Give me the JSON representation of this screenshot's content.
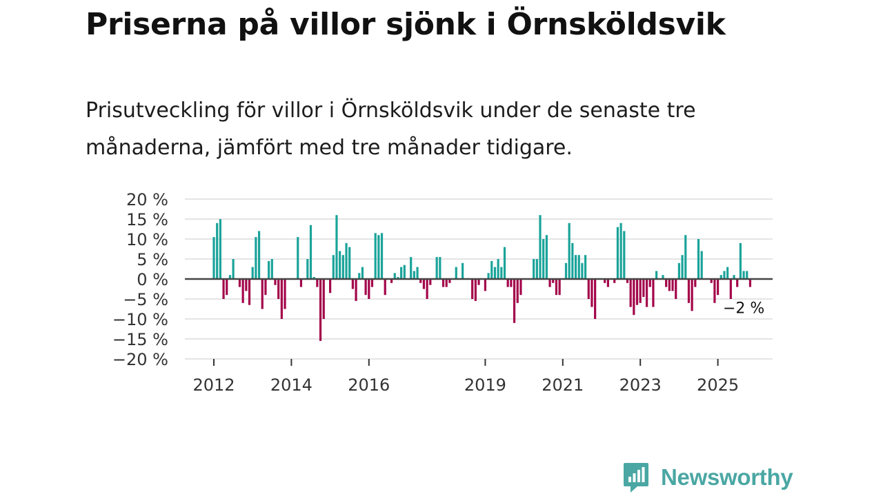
{
  "title": "Priserna på villor sjönk i Örnsköldsvik",
  "subtitle": "Prisutveckling för villor i Örnsköldsvik under de senaste tre månaderna, jämfört med tre månader tidigare.",
  "brand": {
    "name": "Newsworthy",
    "color": "#4aa7a3"
  },
  "colors": {
    "positive": "#1aa39a",
    "negative": "#a3054a",
    "grid": "#dcdcdc",
    "zero": "#444444"
  },
  "chart_data": {
    "type": "bar",
    "ylim": [
      -20,
      20
    ],
    "yticks": [
      {
        "value": 20,
        "label": "20 %"
      },
      {
        "value": 15,
        "label": "15 %"
      },
      {
        "value": 10,
        "label": "10 %"
      },
      {
        "value": 5,
        "label": "5 %"
      },
      {
        "value": 0,
        "label": "0 %"
      },
      {
        "value": -5,
        "label": "−5 %"
      },
      {
        "value": -10,
        "label": "−10 %"
      },
      {
        "value": -15,
        "label": "−15 %"
      },
      {
        "value": -20,
        "label": "−20 %"
      }
    ],
    "xticks": [
      {
        "year": 2012,
        "label": "2012"
      },
      {
        "year": 2014,
        "label": "2014"
      },
      {
        "year": 2016,
        "label": "2016"
      },
      {
        "year": 2019,
        "label": "2019"
      },
      {
        "year": 2021,
        "label": "2021"
      },
      {
        "year": 2023,
        "label": "2023"
      },
      {
        "year": 2025,
        "label": "2025"
      }
    ],
    "start": "2012-01",
    "annotation": {
      "label": "−2 %",
      "value": -2
    },
    "values": [
      10.5,
      14,
      15,
      -5,
      -4,
      1,
      5,
      0,
      -2,
      -6,
      -3,
      -6.5,
      3,
      10.5,
      12,
      -7.5,
      -4,
      4.5,
      5,
      -1.5,
      -5,
      -10,
      -7.5,
      0,
      0,
      0,
      10.5,
      -2,
      0,
      5,
      13.5,
      0.5,
      -2,
      -15.5,
      -10,
      0,
      -3.5,
      6,
      16,
      7,
      6,
      9,
      8,
      -2.5,
      -5.5,
      1.5,
      3,
      -4,
      -5,
      -2,
      11.5,
      11,
      11.5,
      -4,
      0,
      -1,
      1.5,
      0.5,
      3,
      3.5,
      0,
      5.5,
      2,
      3,
      -1,
      -2.5,
      -5,
      -1.5,
      0,
      5.5,
      5.5,
      -2,
      -2,
      -1,
      0,
      3,
      0,
      4,
      0,
      0,
      -5,
      -5.5,
      -1.5,
      0,
      -3,
      1.5,
      4.5,
      3,
      5,
      3,
      8,
      -2,
      -2,
      -11,
      -6,
      -4,
      0,
      0,
      0,
      5,
      5,
      16,
      10,
      11,
      -2,
      -1,
      -4,
      -4,
      0,
      4,
      14,
      9,
      6,
      6,
      4,
      6,
      -5,
      -7,
      -10,
      0,
      0,
      -1,
      -2,
      0,
      -1,
      13,
      14,
      12,
      -1,
      -7,
      -9,
      -6.5,
      -6,
      -4.5,
      -7,
      -2,
      -7,
      2,
      0,
      1,
      -2,
      -3,
      -3,
      -5,
      4,
      6,
      11,
      -6,
      -8,
      -2,
      10,
      7,
      0,
      0,
      -1,
      -6,
      -4,
      1,
      2,
      3,
      -5,
      1,
      -2,
      9,
      2,
      2,
      -2
    ]
  }
}
